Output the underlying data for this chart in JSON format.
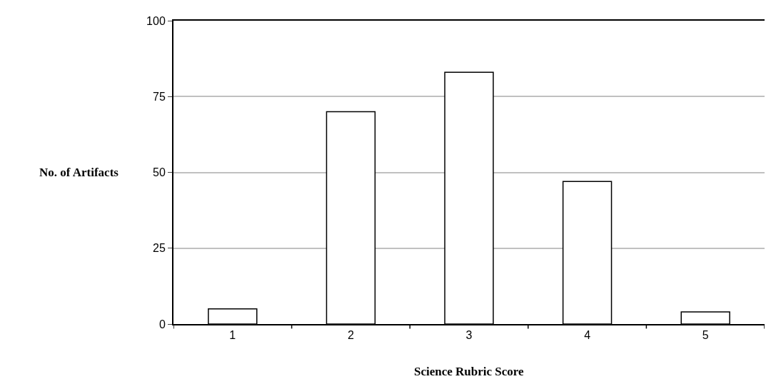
{
  "chart_data": {
    "type": "bar",
    "xlabel": "Science Rubric Score",
    "ylabel": "No. of Artifacts",
    "categories": [
      "1",
      "2",
      "3",
      "4",
      "5"
    ],
    "values": [
      5,
      70,
      83,
      47,
      4
    ],
    "color": "#ffffff",
    "ylim": [
      0,
      100
    ],
    "yticks": [
      0,
      25,
      50,
      75,
      100
    ],
    "grid": "y",
    "legend": false
  }
}
